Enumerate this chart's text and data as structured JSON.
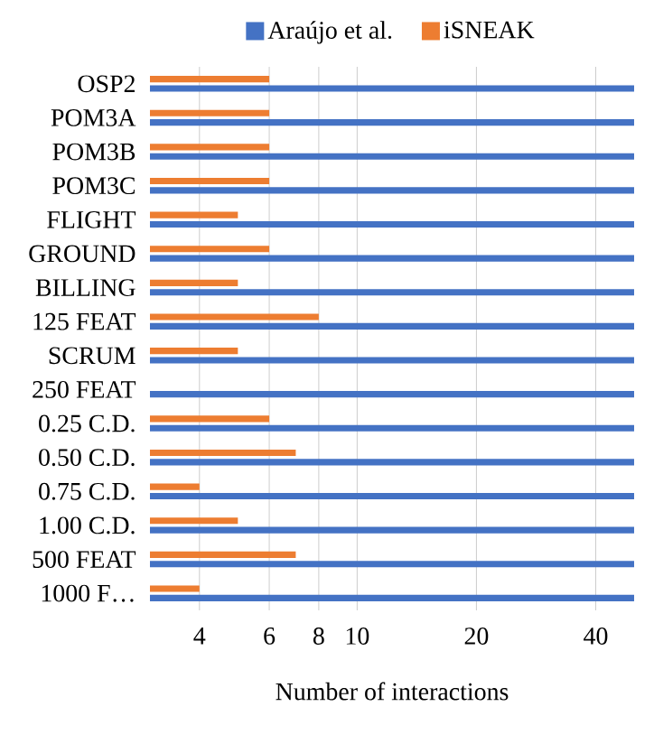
{
  "chart_data": {
    "type": "bar",
    "orientation": "horizontal",
    "xlabel": "Number of interactions",
    "categories": [
      "OSP2",
      "POM3A",
      "POM3B",
      "POM3C",
      "FLIGHT",
      "GROUND",
      "BILLING",
      "125 FEAT",
      "SCRUM",
      "250 FEAT",
      "0.25 C.D.",
      "0.50 C.D.",
      "0.75 C.D.",
      "1.00 C.D.",
      "500 FEAT",
      "1000 F…"
    ],
    "series": [
      {
        "name": "Araújo et al.",
        "color": "#4472c4",
        "values": [
          50,
          50,
          50,
          50,
          50,
          50,
          50,
          50,
          50,
          50,
          50,
          50,
          50,
          50,
          50,
          50
        ]
      },
      {
        "name": "iSNEAK",
        "color": "#ed7d31",
        "values": [
          6,
          6,
          6,
          6,
          5,
          6,
          5,
          8,
          5,
          null,
          6,
          7,
          4,
          5,
          7,
          4
        ]
      }
    ],
    "log": "x",
    "xlim": [
      3,
      50
    ],
    "xticks": [
      4,
      6,
      8,
      10,
      20,
      40
    ],
    "grid": "x",
    "legend": "top"
  }
}
